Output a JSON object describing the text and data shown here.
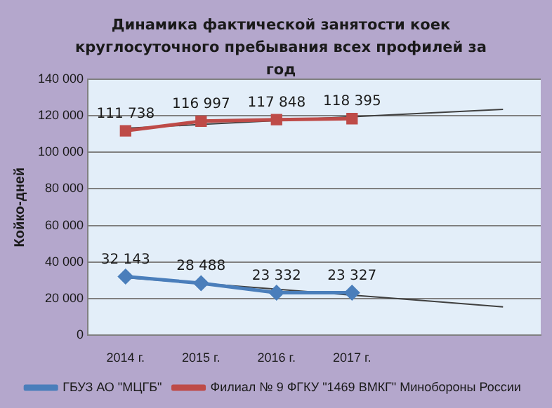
{
  "chart_data": {
    "type": "line",
    "title": "Динамика фактической занятости коек круглосуточного пребывания всех профилей за год",
    "ylabel": "Койко-дней",
    "categories": [
      "2014 г.",
      "2015 г.",
      "2016 г.",
      "2017 г.",
      null,
      null
    ],
    "series": [
      {
        "name": "ГБУЗ АО \"МЦГБ\"",
        "color": "#4a7ebb",
        "marker": "diamond",
        "values": [
          32143,
          28488,
          23332,
          23327,
          null,
          null
        ],
        "value_labels": [
          "32 143",
          "28 488",
          "23 332",
          "23 327",
          null,
          null
        ]
      },
      {
        "name": "Филиал № 9 ФГКУ \"1469 ВМКГ\" Минобороны России",
        "color": "#be4b48",
        "marker": "square",
        "values": [
          111738,
          116997,
          117848,
          118395,
          null,
          null
        ],
        "value_labels": [
          "111 738",
          "116 997",
          "117 848",
          "118 395",
          null,
          null
        ]
      },
      {
        "type": "line",
        "color": "#404040",
        "marker": "none",
        "values": [
          31600,
          28400,
          25200,
          22000,
          18800,
          15600
        ]
      },
      {
        "type": "line",
        "color": "#404040",
        "marker": "none",
        "values": [
          113100,
          115200,
          117300,
          119400,
          121400,
          123500
        ]
      }
    ],
    "ylim": [
      0,
      140000
    ],
    "yticks": [
      0,
      {
        "value": 20000,
        "label": "20 000"
      },
      {
        "value": 40000,
        "label": "40 000"
      },
      {
        "value": 60000,
        "label": "60 000"
      },
      {
        "value": 80000,
        "label": "80 000"
      },
      {
        "value": 100000,
        "label": "100 000"
      },
      {
        "value": 120000,
        "label": "120 000"
      },
      {
        "value": 140000,
        "label": "140 000"
      }
    ],
    "grid": "y",
    "legend": "bottom",
    "line_style": "solid"
  }
}
